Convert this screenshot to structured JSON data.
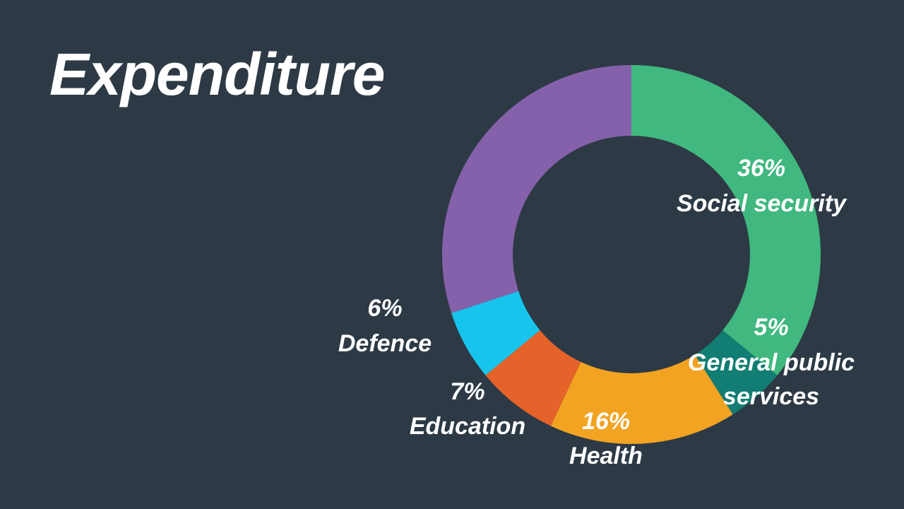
{
  "chart_data": {
    "type": "donut",
    "title": "Expenditure",
    "categories": [
      "Social security",
      "General public services",
      "Health",
      "Education",
      "Defence",
      null
    ],
    "values": [
      36,
      5,
      16,
      7,
      6,
      30
    ],
    "value_labels": [
      "36%",
      "5%",
      "16%",
      "7%",
      "6%",
      null
    ],
    "colors": [
      "#40b87f",
      "#127d72",
      "#f2a322",
      "#e5632a",
      "#17c5ec",
      "#8561ab"
    ]
  }
}
